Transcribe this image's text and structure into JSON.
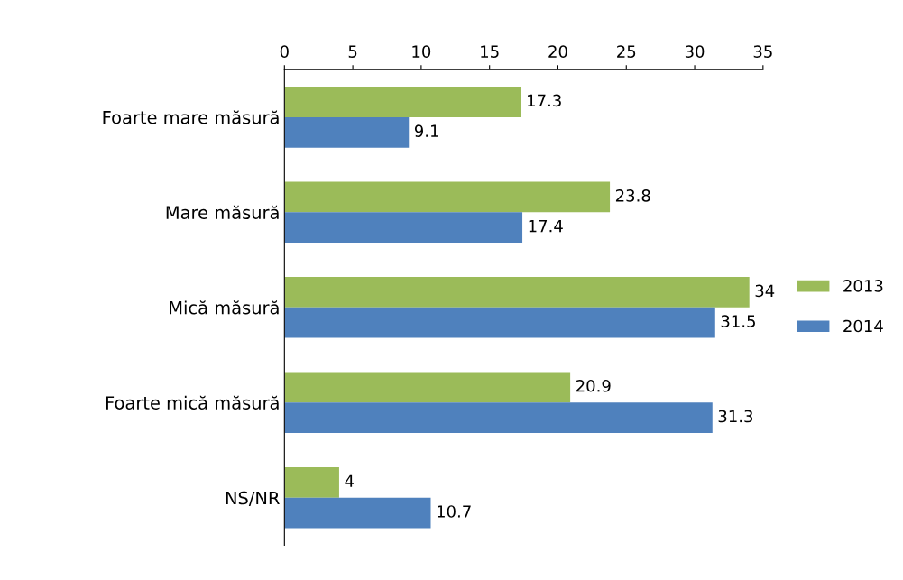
{
  "chart_data": {
    "type": "bar",
    "orientation": "horizontal",
    "categories": [
      "Foarte mare măsură",
      "Mare măsură",
      "Mică măsură",
      "Foarte mică măsură",
      "NS/NR"
    ],
    "series": [
      {
        "name": "2013",
        "color": "#9bbb59",
        "values": [
          17.3,
          23.8,
          34,
          20.9,
          4
        ]
      },
      {
        "name": "2014",
        "color": "#4f81bd",
        "values": [
          9.1,
          17.4,
          31.5,
          31.3,
          10.7
        ]
      }
    ],
    "xlim": [
      0,
      35
    ],
    "xticks": [
      0,
      5,
      10,
      15,
      20,
      25,
      30,
      35
    ],
    "data_labels": true,
    "legend": "right",
    "grid": false
  }
}
